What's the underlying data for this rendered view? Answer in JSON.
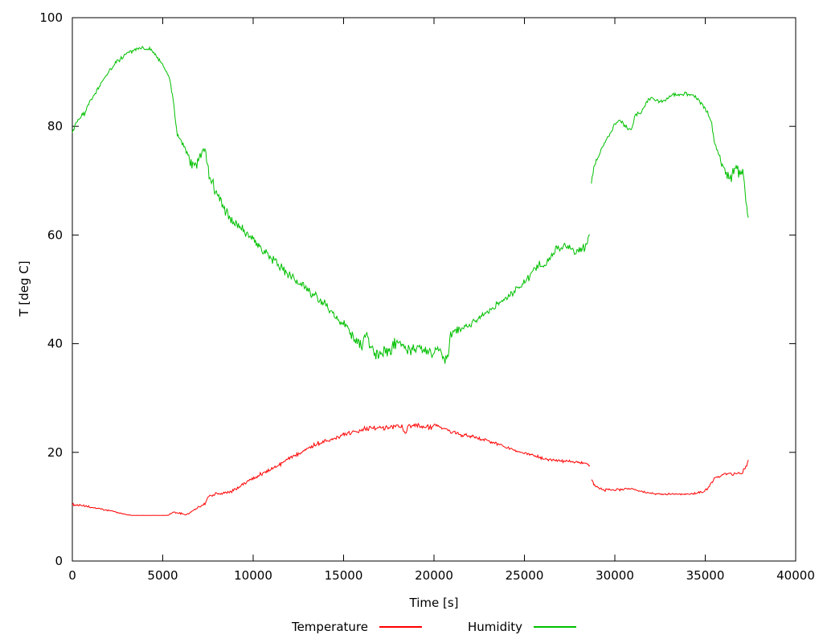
{
  "chart_data": {
    "type": "line",
    "title": "",
    "xlabel": "Time [s]",
    "ylabel": "T [deg C]",
    "xlim": [
      0,
      40000
    ],
    "ylim": [
      0,
      100
    ],
    "xticks": [
      0,
      5000,
      10000,
      15000,
      20000,
      25000,
      30000,
      35000,
      40000
    ],
    "yticks": [
      0,
      20,
      40,
      60,
      80,
      100
    ],
    "grid": false,
    "legend_position": "below-plot",
    "background": "#ffffff",
    "axis_color": "#000000",
    "series": [
      {
        "name": "Temperature",
        "color": "#ff0000",
        "noise": [
          [
            0,
            0.22
          ],
          [
            3000,
            0.15
          ],
          [
            3400,
            0.02
          ],
          [
            5200,
            0.02
          ],
          [
            5600,
            0.2
          ],
          [
            7500,
            0.3
          ],
          [
            10000,
            0.35
          ],
          [
            14000,
            0.45
          ],
          [
            16000,
            0.5
          ],
          [
            20500,
            0.5
          ],
          [
            22000,
            0.4
          ],
          [
            24000,
            0.3
          ],
          [
            27000,
            0.3
          ],
          [
            28650,
            0.2
          ],
          [
            28700,
            0.3
          ],
          [
            30000,
            0.25
          ],
          [
            31000,
            0.2
          ],
          [
            34600,
            0.2
          ],
          [
            35200,
            0.35
          ],
          [
            36000,
            0.4
          ],
          [
            36800,
            0.3
          ],
          [
            37400,
            0.4
          ]
        ],
        "segments": [
          [
            [
              0,
              10.4
            ],
            [
              700,
              10.1
            ],
            [
              1500,
              9.6
            ],
            [
              2300,
              9.1
            ],
            [
              2900,
              8.6
            ],
            [
              3300,
              8.4
            ],
            [
              5300,
              8.4
            ],
            [
              5600,
              9.0
            ],
            [
              5900,
              8.8
            ],
            [
              6300,
              8.5
            ],
            [
              6700,
              9.3
            ],
            [
              7000,
              10.0
            ],
            [
              7300,
              10.4
            ],
            [
              7550,
              11.9
            ],
            [
              7900,
              12.4
            ],
            [
              8500,
              12.5
            ],
            [
              9000,
              13.1
            ],
            [
              9500,
              14.2
            ],
            [
              10000,
              15.3
            ],
            [
              10700,
              16.4
            ],
            [
              11500,
              17.8
            ],
            [
              12200,
              19.3
            ],
            [
              13000,
              20.8
            ],
            [
              13800,
              21.9
            ],
            [
              14600,
              22.8
            ],
            [
              15400,
              23.6
            ],
            [
              16000,
              24.3
            ],
            [
              16600,
              24.6
            ],
            [
              17200,
              24.5
            ],
            [
              17800,
              24.8
            ],
            [
              18250,
              24.7
            ],
            [
              18400,
              23.4
            ],
            [
              18550,
              24.6
            ],
            [
              19100,
              24.9
            ],
            [
              19700,
              24.6
            ],
            [
              20200,
              24.8
            ],
            [
              20600,
              24.3
            ],
            [
              21100,
              23.6
            ],
            [
              21700,
              23.1
            ],
            [
              22400,
              22.7
            ],
            [
              23000,
              22.1
            ],
            [
              23700,
              21.3
            ],
            [
              24400,
              20.5
            ],
            [
              25100,
              19.8
            ],
            [
              25800,
              19.1
            ],
            [
              26400,
              18.6
            ],
            [
              27000,
              18.4
            ],
            [
              27600,
              18.3
            ],
            [
              28100,
              18.1
            ],
            [
              28450,
              17.9
            ],
            [
              28650,
              17.3
            ]
          ],
          [
            [
              28700,
              14.8
            ],
            [
              28900,
              14.0
            ],
            [
              29200,
              13.3
            ],
            [
              29600,
              13.0
            ],
            [
              30000,
              13.1
            ],
            [
              30400,
              13.2
            ],
            [
              30800,
              13.4
            ],
            [
              31100,
              13.1
            ],
            [
              31500,
              12.8
            ],
            [
              32000,
              12.5
            ],
            [
              32600,
              12.3
            ],
            [
              33200,
              12.4
            ],
            [
              33800,
              12.3
            ],
            [
              34400,
              12.4
            ],
            [
              34900,
              12.7
            ],
            [
              35100,
              13.2
            ],
            [
              35300,
              14.3
            ],
            [
              35600,
              15.4
            ],
            [
              35900,
              15.9
            ],
            [
              36200,
              16.2
            ],
            [
              36500,
              16.0
            ],
            [
              36800,
              16.1
            ],
            [
              37000,
              16.2
            ],
            [
              37150,
              16.8
            ],
            [
              37300,
              17.5
            ],
            [
              37400,
              18.9
            ]
          ]
        ]
      },
      {
        "name": "Humidity",
        "color": "#00c000",
        "noise": [
          [
            0,
            0.9
          ],
          [
            300,
            0.5
          ],
          [
            1000,
            0.45
          ],
          [
            3500,
            0.4
          ],
          [
            5500,
            0.5
          ],
          [
            6500,
            1.1
          ],
          [
            7500,
            1.2
          ],
          [
            9000,
            0.9
          ],
          [
            11000,
            0.9
          ],
          [
            13000,
            1.0
          ],
          [
            15000,
            1.2
          ],
          [
            16500,
            1.5
          ],
          [
            18000,
            1.3
          ],
          [
            19500,
            1.2
          ],
          [
            20800,
            0.8
          ],
          [
            22000,
            0.7
          ],
          [
            24000,
            0.8
          ],
          [
            26000,
            1.0
          ],
          [
            27500,
            0.9
          ],
          [
            28650,
            0.8
          ],
          [
            28700,
            0.4
          ],
          [
            29500,
            0.4
          ],
          [
            31000,
            0.5
          ],
          [
            33000,
            0.4
          ],
          [
            34800,
            0.4
          ],
          [
            35500,
            0.5
          ],
          [
            36100,
            1.2
          ],
          [
            36600,
            1.4
          ],
          [
            37000,
            1.5
          ],
          [
            37400,
            1.0
          ]
        ],
        "segments": [
          [
            [
              0,
              78.5
            ],
            [
              150,
              80.3
            ],
            [
              400,
              81.5
            ],
            [
              700,
              82.4
            ],
            [
              900,
              83.9
            ],
            [
              1300,
              86.4
            ],
            [
              1700,
              88.4
            ],
            [
              2100,
              90.4
            ],
            [
              2500,
              92.0
            ],
            [
              3000,
              93.3
            ],
            [
              3400,
              94.0
            ],
            [
              3800,
              94.5
            ],
            [
              4300,
              94.2
            ],
            [
              4700,
              92.8
            ],
            [
              5100,
              90.7
            ],
            [
              5400,
              88.6
            ],
            [
              5600,
              84.5
            ],
            [
              5750,
              79.2
            ],
            [
              6000,
              77.0
            ],
            [
              6300,
              75.2
            ],
            [
              6600,
              73.4
            ],
            [
              6900,
              73.2
            ],
            [
              7150,
              75.6
            ],
            [
              7400,
              74.6
            ],
            [
              7600,
              70.6
            ],
            [
              7900,
              68.2
            ],
            [
              8300,
              65.6
            ],
            [
              8700,
              63.1
            ],
            [
              9200,
              61.6
            ],
            [
              9700,
              59.9
            ],
            [
              10200,
              58.6
            ],
            [
              10700,
              56.6
            ],
            [
              11200,
              55.1
            ],
            [
              11700,
              53.6
            ],
            [
              12200,
              52.1
            ],
            [
              12700,
              50.6
            ],
            [
              13200,
              49.4
            ],
            [
              13700,
              47.9
            ],
            [
              14200,
              46.3
            ],
            [
              14700,
              44.6
            ],
            [
              15200,
              43.1
            ],
            [
              15600,
              41.1
            ],
            [
              16000,
              39.4
            ],
            [
              16250,
              41.9
            ],
            [
              16500,
              39.2
            ],
            [
              16900,
              38.0
            ],
            [
              17300,
              38.6
            ],
            [
              17700,
              39.4
            ],
            [
              18100,
              40.4
            ],
            [
              18450,
              38.9
            ],
            [
              18800,
              38.6
            ],
            [
              19150,
              39.9
            ],
            [
              19500,
              38.9
            ],
            [
              19900,
              38.3
            ],
            [
              20300,
              38.9
            ],
            [
              20600,
              37.0
            ],
            [
              20800,
              38.0
            ],
            [
              20900,
              41.6
            ],
            [
              21300,
              42.6
            ],
            [
              21900,
              43.3
            ],
            [
              22500,
              44.7
            ],
            [
              23100,
              46.0
            ],
            [
              23700,
              47.6
            ],
            [
              24300,
              49.3
            ],
            [
              24900,
              51.0
            ],
            [
              25400,
              53.0
            ],
            [
              25700,
              54.6
            ],
            [
              26000,
              54.1
            ],
            [
              26300,
              55.3
            ],
            [
              26700,
              57.2
            ],
            [
              27100,
              57.9
            ],
            [
              27500,
              57.6
            ],
            [
              27800,
              56.7
            ],
            [
              28100,
              57.0
            ],
            [
              28400,
              58.0
            ],
            [
              28650,
              60.6
            ]
          ],
          [
            [
              28700,
              69.8
            ],
            [
              28850,
              72.6
            ],
            [
              29100,
              74.7
            ],
            [
              29400,
              76.7
            ],
            [
              29700,
              78.5
            ],
            [
              30000,
              80.4
            ],
            [
              30250,
              81.2
            ],
            [
              30500,
              80.2
            ],
            [
              30750,
              79.4
            ],
            [
              31000,
              79.9
            ],
            [
              31150,
              82.3
            ],
            [
              31400,
              82.2
            ],
            [
              31700,
              84.3
            ],
            [
              32000,
              85.2
            ],
            [
              32300,
              84.9
            ],
            [
              32600,
              84.4
            ],
            [
              32900,
              85.2
            ],
            [
              33200,
              85.9
            ],
            [
              33500,
              85.7
            ],
            [
              33900,
              86.1
            ],
            [
              34200,
              85.8
            ],
            [
              34600,
              85.1
            ],
            [
              34900,
              83.6
            ],
            [
              35150,
              82.4
            ],
            [
              35350,
              80.5
            ],
            [
              35550,
              76.5
            ],
            [
              35800,
              74.2
            ],
            [
              36050,
              72.1
            ],
            [
              36300,
              70.6
            ],
            [
              36550,
              71.3
            ],
            [
              36750,
              73.0
            ],
            [
              36950,
              70.5
            ],
            [
              37100,
              72.0
            ],
            [
              37200,
              68.0
            ],
            [
              37300,
              65.0
            ],
            [
              37400,
              62.3
            ]
          ]
        ]
      }
    ]
  }
}
